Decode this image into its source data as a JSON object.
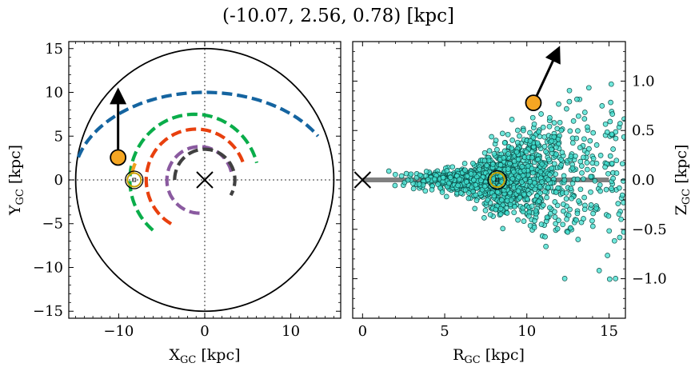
{
  "figure": {
    "title": "(-10.07, 2.56, 0.78) [kpc]"
  },
  "chart_data": [
    {
      "type": "scatter",
      "panel": "galactic-plane",
      "xlabel_main": "X",
      "xlabel_sub": "GC",
      "xlabel_unit": " [kpc]",
      "ylabel_main": "Y",
      "ylabel_sub": "GC",
      "ylabel_unit": " [kpc]",
      "xlim": [
        -15.8,
        15.8
      ],
      "ylim": [
        -15.8,
        15.8
      ],
      "xticks": [
        -10,
        0,
        10
      ],
      "xtick_labels": [
        "−10",
        "0",
        "10"
      ],
      "yticks": [
        -15,
        -10,
        -5,
        0,
        5,
        10,
        15
      ],
      "ytick_labels": [
        "−15",
        "−10",
        "−5",
        "0",
        "5",
        "10",
        "15"
      ],
      "boundary_circle_radius": 15,
      "galactic_center": [
        0,
        0
      ],
      "sun_position": [
        -8.2,
        0
      ],
      "object_position": [
        -10.07,
        2.56
      ],
      "velocity_arrow_end": [
        -10.07,
        9.6
      ],
      "spiral_arms": [
        {
          "color": "#1464a0",
          "start_angle_deg": 165,
          "end_angle_deg": 30,
          "center": [
            0,
            0
          ],
          "radius": 15.2,
          "ry": 10
        },
        {
          "color": "#0aad4a",
          "start_angle_deg": 230,
          "end_angle_deg": 15,
          "center": [
            -1.2,
            0
          ],
          "radius": 7.5
        },
        {
          "color": "#f0a020",
          "start_angle_deg": 170,
          "end_angle_deg": 150,
          "center": [
            -4,
            0
          ],
          "radius": 4.5
        },
        {
          "color": "#e8400e",
          "start_angle_deg": 240,
          "end_angle_deg": 20,
          "center": [
            -1,
            0
          ],
          "radius": 5.8
        },
        {
          "color": "#8a5aa0",
          "start_angle_deg": 270,
          "end_angle_deg": 10,
          "center": [
            -0.6,
            0
          ],
          "radius": 3.8
        },
        {
          "color": "#404040",
          "start_angle_deg": 180,
          "end_angle_deg": 330,
          "center": [
            0,
            0
          ],
          "radius": 3.5
        }
      ]
    },
    {
      "type": "scatter",
      "panel": "vertical-plane",
      "xlabel_main": "R",
      "xlabel_sub": "GC",
      "xlabel_unit": " [kpc]",
      "ylabel_main": "Z",
      "ylabel_sub": "GC",
      "ylabel_unit": " [kpc]",
      "xlim": [
        -0.6,
        16
      ],
      "ylim": [
        -1.4,
        1.4
      ],
      "xticks": [
        0,
        5,
        10,
        15
      ],
      "xtick_labels": [
        "0",
        "5",
        "10",
        "15"
      ],
      "yticks": [
        -1.0,
        -0.5,
        0.0,
        0.5,
        1.0
      ],
      "ytick_labels": [
        "−1.0",
        "−0.5",
        "0.0",
        "0.5",
        "1.0"
      ],
      "disk_line": [
        [
          0,
          0
        ],
        [
          15,
          0
        ]
      ],
      "galactic_center": [
        0,
        0
      ],
      "sun_position": [
        8.2,
        0
      ],
      "object_position": [
        10.4,
        0.78
      ],
      "velocity_arrow_end": [
        11.8,
        1.28
      ],
      "point_color": "#40e0d0",
      "point_count": 1500
    }
  ],
  "colors": {
    "object_marker": "#f5a623",
    "sun_marker": "#c8a000",
    "disk_line": "#808080",
    "boundary": "#000000"
  }
}
